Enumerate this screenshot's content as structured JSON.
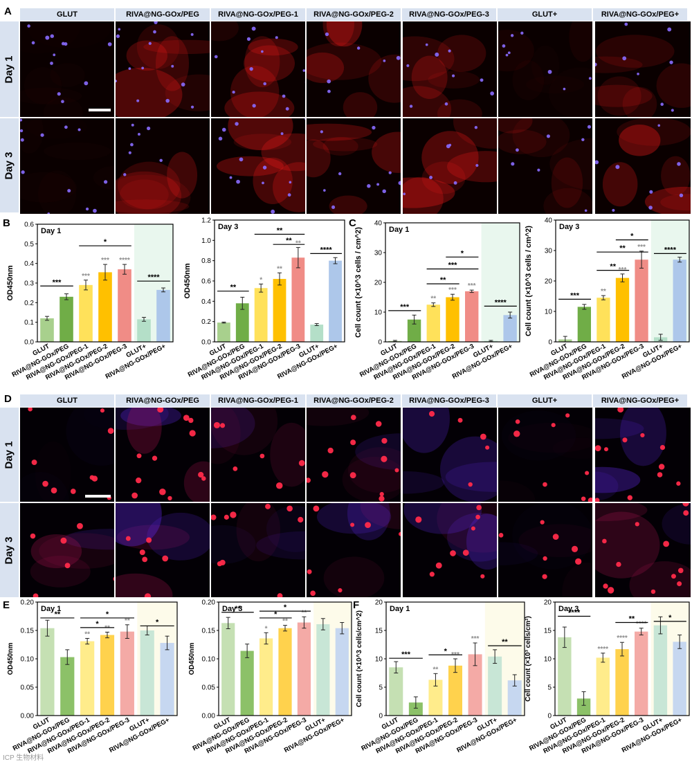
{
  "panels": {
    "A": "A",
    "B": "B",
    "C": "C",
    "D": "D",
    "E": "E",
    "F": "F"
  },
  "groups": [
    "GLUT",
    "RIVA@NG-GOx/PEG",
    "RIVA@NG-GOx/PEG-1",
    "RIVA@NG-GOx/PEG-2",
    "RIVA@NG-GOx/PEG-3",
    "GLUT+",
    "RIVA@NG-GOx/PEG+"
  ],
  "rows": {
    "day1": "Day 1",
    "day3": "Day 3"
  },
  "watermark": "ICP 生物材料",
  "colors": {
    "header_bg": "#d9e2f0",
    "bars": [
      "#a8d08d",
      "#70ad47",
      "#ffe15a",
      "#ffc000",
      "#f08c86",
      "#b4dfc8",
      "#adc7ea"
    ],
    "bars_light": [
      "#c5e0b3",
      "#8cc168",
      "#ffec8b",
      "#ffd24d",
      "#f4aaa6",
      "#c8e6d6",
      "#c6d7f0"
    ],
    "sig_gray": "#8c8c8c",
    "shade_b": "#e9f7ee",
    "shade_e": "#fdfbea"
  },
  "chart_data": [
    {
      "id": "B1",
      "type": "bar",
      "title": "Day 1",
      "ylabel": "OD450nm",
      "ylim": [
        0,
        0.6
      ],
      "yticks": [
        0,
        0.1,
        0.2,
        0.3,
        0.4,
        0.5,
        0.6
      ],
      "categories": [
        "GLUT",
        "RIVA@NG-GOx/PEG",
        "RIVA@NG-GOx/PEG-1",
        "RIVA@NG-GOx/PEG-2",
        "RIVA@NG-GOx/PEG-3",
        "GLUT+",
        "RIVA@NG-GOx/PEG+"
      ],
      "values": [
        0.12,
        0.23,
        0.29,
        0.355,
        0.37,
        0.115,
        0.265
      ],
      "errors": [
        0.01,
        0.015,
        0.025,
        0.04,
        0.025,
        0.01,
        0.01
      ],
      "marks": [
        "",
        "",
        "***",
        "***",
        "****",
        "",
        ""
      ],
      "brackets": [
        {
          "from": 0,
          "to": 1,
          "label": "***",
          "y": 0.285
        },
        {
          "from": 2,
          "to": 4,
          "label": "*",
          "y": 0.49
        },
        {
          "from": 5,
          "to": 6,
          "label": "****",
          "y": 0.31
        }
      ]
    },
    {
      "id": "B3",
      "type": "bar",
      "title": "Day 3",
      "ylabel": "OD450nm",
      "ylim": [
        0,
        1.2
      ],
      "yticks": [
        0,
        0.2,
        0.4,
        0.6,
        0.8,
        1.0,
        1.2
      ],
      "categories": [
        "GLUT",
        "RIVA@NG-GOx/PEG",
        "RIVA@NG-GOx/PEG-1",
        "RIVA@NG-GOx/PEG-2",
        "RIVA@NG-GOx/PEG-3",
        "GLUT+",
        "RIVA@NG-GOx/PEG+"
      ],
      "values": [
        0.19,
        0.38,
        0.53,
        0.62,
        0.83,
        0.17,
        0.8
      ],
      "errors": [
        0.005,
        0.06,
        0.04,
        0.06,
        0.1,
        0.01,
        0.03
      ],
      "marks": [
        "",
        "",
        "*",
        "**",
        "**",
        "",
        ""
      ],
      "brackets": [
        {
          "from": 0,
          "to": 1,
          "label": "**",
          "y": 0.5
        },
        {
          "from": 2,
          "to": 4,
          "label": "**",
          "y": 1.06
        },
        {
          "from": 3,
          "to": 4,
          "label": "**",
          "y": 0.96
        },
        {
          "from": 5,
          "to": 6,
          "label": "****",
          "y": 0.87
        }
      ]
    },
    {
      "id": "C1",
      "type": "bar",
      "title": "Day 1",
      "ylabel": "Cell count (×10^3 cells / cm^2)",
      "ylim": [
        0,
        40
      ],
      "yticks": [
        0,
        10,
        20,
        30,
        40
      ],
      "categories": [
        "GLUT",
        "RIVA@NG-GOx/PEG",
        "RIVA@NG-GOx/PEG-1",
        "RIVA@NG-GOx/PEG-2",
        "RIVA@NG-GOx/PEG-3",
        "GLUT+",
        "RIVA@NG-GOx/PEG+"
      ],
      "values": [
        0.3,
        7.5,
        12.5,
        15,
        17,
        0.3,
        9
      ],
      "errors": [
        0.2,
        1.5,
        0.6,
        1,
        0.4,
        0.2,
        1
      ],
      "marks": [
        "",
        "",
        "**",
        "***",
        "***",
        "",
        ""
      ],
      "brackets": [
        {
          "from": 0,
          "to": 1,
          "label": "***",
          "y": 10.5
        },
        {
          "from": 2,
          "to": 3,
          "label": "**",
          "y": 19.5
        },
        {
          "from": 2,
          "to": 4,
          "label": "***",
          "y": 24.5
        },
        {
          "from": 3,
          "to": 4,
          "label": "*",
          "y": 28.5
        },
        {
          "from": 5,
          "to": 6,
          "label": "****",
          "y": 12
        }
      ]
    },
    {
      "id": "C3",
      "type": "bar",
      "title": "Day 3",
      "ylabel": "Cell count (×10^3 cells / cm^2)",
      "ylim": [
        0,
        40
      ],
      "yticks": [
        0,
        10,
        20,
        30,
        40
      ],
      "categories": [
        "GLUT",
        "RIVA@NG-GOx/PEG",
        "RIVA@NG-GOx/PEG-1",
        "RIVA@NG-GOx/PEG-2",
        "RIVA@NG-GOx/PEG-3",
        "GLUT+",
        "RIVA@NG-GOx/PEG+"
      ],
      "values": [
        0.8,
        11.5,
        14.5,
        21,
        27,
        1.5,
        27
      ],
      "errors": [
        1,
        0.8,
        0.7,
        1.3,
        2.8,
        1,
        0.8
      ],
      "marks": [
        "",
        "",
        "**",
        "***",
        "***",
        "",
        ""
      ],
      "brackets": [
        {
          "from": 0,
          "to": 1,
          "label": "***",
          "y": 14
        },
        {
          "from": 2,
          "to": 3,
          "label": "**",
          "y": 23.5
        },
        {
          "from": 2,
          "to": 4,
          "label": "**",
          "y": 29.5
        },
        {
          "from": 3,
          "to": 4,
          "label": "*",
          "y": 33.5
        },
        {
          "from": 5,
          "to": 6,
          "label": "****",
          "y": 29
        }
      ]
    },
    {
      "id": "E1",
      "type": "bar",
      "title": "Day 1",
      "ylabel": "OD450nm",
      "ylim": [
        0,
        0.2
      ],
      "yticks": [
        0,
        0.05,
        0.1,
        0.15,
        0.2
      ],
      "categories": [
        "GLUT",
        "RIVA@NG-GOx/PEG",
        "RIVA@NG-GOx/PEG-1",
        "RIVA@NG-GOx/PEG-2",
        "RIVA@NG-GOx/PEG-3",
        "GLUT+",
        "RIVA@NG-GOx/PEG+"
      ],
      "values": [
        0.154,
        0.103,
        0.131,
        0.142,
        0.148,
        0.15,
        0.128
      ],
      "errors": [
        0.014,
        0.013,
        0.005,
        0.005,
        0.012,
        0.008,
        0.012
      ],
      "marks": [
        "",
        "",
        "**",
        "**",
        "**",
        "",
        ""
      ],
      "brackets": [
        {
          "from": 0,
          "to": 1,
          "label": "**",
          "y": 0.172
        },
        {
          "from": 2,
          "to": 3,
          "label": "*",
          "y": 0.155
        },
        {
          "from": 2,
          "to": 4,
          "label": "*",
          "y": 0.172
        },
        {
          "from": 5,
          "to": 6,
          "label": "*",
          "y": 0.158
        }
      ]
    },
    {
      "id": "E3",
      "type": "bar",
      "title": "Day 3",
      "ylabel": "OD450nm",
      "ylim": [
        0,
        0.2
      ],
      "yticks": [
        0,
        0.05,
        0.1,
        0.15,
        0.2
      ],
      "categories": [
        "GLUT",
        "RIVA@NG-GOx/PEG",
        "RIVA@NG-GOx/PEG-1",
        "RIVA@NG-GOx/PEG-2",
        "RIVA@NG-GOx/PEG-3",
        "GLUT+",
        "RIVA@NG-GOx/PEG+"
      ],
      "values": [
        0.163,
        0.114,
        0.136,
        0.154,
        0.164,
        0.161,
        0.154
      ],
      "errors": [
        0.01,
        0.012,
        0.01,
        0.005,
        0.01,
        0.01,
        0.01
      ],
      "marks": [
        "",
        "",
        "*",
        "**",
        "**",
        "",
        ""
      ],
      "brackets": [
        {
          "from": 0,
          "to": 1,
          "label": "**",
          "y": 0.182
        },
        {
          "from": 2,
          "to": 3,
          "label": "*",
          "y": 0.172
        },
        {
          "from": 2,
          "to": 4,
          "label": "*",
          "y": 0.184
        }
      ]
    },
    {
      "id": "F1",
      "type": "bar",
      "title": "Day 1",
      "ylabel": "Cell count (×10^3 cells/cm^2)",
      "ylim": [
        0,
        20
      ],
      "yticks": [
        0,
        5,
        10,
        15,
        20
      ],
      "categories": [
        "GLUT",
        "RIVA@NG-GOx/PEG",
        "RIVA@NG-GOx/PEG-1",
        "RIVA@NG-GOx/PEG-2",
        "RIVA@NG-GOx/PEG-3",
        "GLUT+",
        "RIVA@NG-GOx/PEG+"
      ],
      "values": [
        8.5,
        2.3,
        6.3,
        8.8,
        10.8,
        10.4,
        6.2
      ],
      "errors": [
        1,
        1,
        1.1,
        1.2,
        2,
        1.2,
        1
      ],
      "marks": [
        "",
        "",
        "**",
        "***",
        "***",
        "",
        ""
      ],
      "brackets": [
        {
          "from": 0,
          "to": 1,
          "label": "***",
          "y": 10.1
        },
        {
          "from": 2,
          "to": 3,
          "label": "*",
          "y": 10.7
        },
        {
          "from": 5,
          "to": 6,
          "label": "**",
          "y": 12.3
        }
      ]
    },
    {
      "id": "F3",
      "type": "bar",
      "title": "Day 3",
      "ylabel": "Cell count (×10³ cells/cm²)",
      "ylim": [
        0,
        20
      ],
      "yticks": [
        0,
        5,
        10,
        15,
        20
      ],
      "categories": [
        "GLUT",
        "RIVA@NG-GOx/PEG",
        "RIVA@NG-GOx/PEG-1",
        "RIVA@NG-GOx/PEG-2",
        "RIVA@NG-GOx/PEG-3",
        "GLUT+",
        "RIVA@NG-GOx/PEG+"
      ],
      "values": [
        13.8,
        3,
        10.2,
        11.7,
        14.8,
        15.9,
        13
      ],
      "errors": [
        1.8,
        1.2,
        0.8,
        1.2,
        0.6,
        1.5,
        1.2
      ],
      "marks": [
        "",
        "",
        "****",
        "****",
        "****",
        "",
        ""
      ],
      "brackets": [
        {
          "from": 0,
          "to": 1,
          "label": "****",
          "y": 17.5
        },
        {
          "from": 3,
          "to": 4,
          "label": "**",
          "y": 16.4
        },
        {
          "from": 5,
          "to": 6,
          "label": "*",
          "y": 16.6
        }
      ]
    }
  ]
}
